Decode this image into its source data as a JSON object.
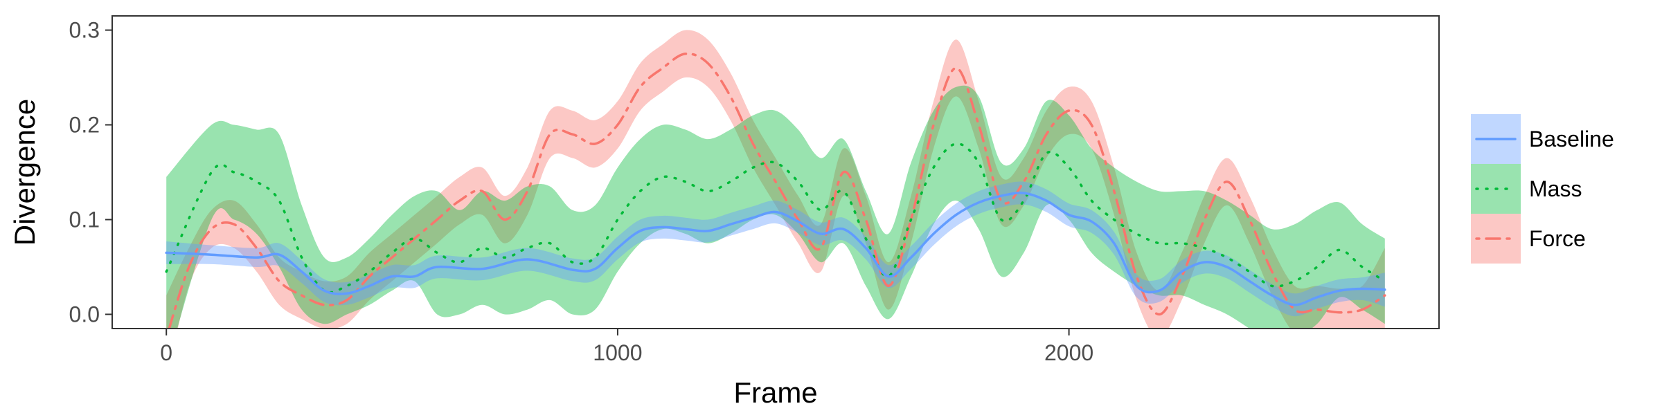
{
  "chart_data": {
    "type": "line",
    "title": "",
    "xlabel": "Frame",
    "ylabel": "Divergence",
    "xlim": [
      -120,
      2820
    ],
    "ylim": [
      -0.015,
      0.315
    ],
    "xticks": [
      0,
      1000,
      2000
    ],
    "xtick_labels": [
      "0",
      "1000",
      "2000"
    ],
    "yticks": [
      0.0,
      0.1,
      0.2,
      0.3
    ],
    "ytick_labels": [
      "0.0",
      "0.1",
      "0.2",
      "0.3"
    ],
    "grid": false,
    "legend_position": "right",
    "series": [
      {
        "name": "Baseline",
        "color": "#619CFF",
        "line_style": "solid",
        "x": [
          0,
          100,
          200,
          250,
          300,
          350,
          400,
          450,
          500,
          550,
          600,
          700,
          800,
          900,
          950,
          1000,
          1050,
          1100,
          1150,
          1200,
          1250,
          1300,
          1350,
          1400,
          1450,
          1500,
          1550,
          1600,
          1650,
          1700,
          1750,
          1800,
          1850,
          1900,
          1950,
          2000,
          2050,
          2100,
          2150,
          2200,
          2250,
          2300,
          2350,
          2400,
          2450,
          2500,
          2550,
          2600,
          2650,
          2700
        ],
        "y": [
          0.065,
          0.063,
          0.06,
          0.063,
          0.045,
          0.025,
          0.022,
          0.03,
          0.04,
          0.04,
          0.05,
          0.048,
          0.058,
          0.047,
          0.048,
          0.07,
          0.088,
          0.092,
          0.09,
          0.088,
          0.095,
          0.102,
          0.108,
          0.098,
          0.085,
          0.09,
          0.07,
          0.04,
          0.06,
          0.085,
          0.105,
          0.118,
          0.125,
          0.128,
          0.12,
          0.105,
          0.098,
          0.075,
          0.03,
          0.025,
          0.045,
          0.055,
          0.05,
          0.035,
          0.02,
          0.01,
          0.018,
          0.025,
          0.027,
          0.026
        ],
        "band": [
          0.012,
          0.01,
          0.01,
          0.012,
          0.012,
          0.012,
          0.012,
          0.012,
          0.012,
          0.012,
          0.012,
          0.012,
          0.012,
          0.012,
          0.012,
          0.012,
          0.012,
          0.012,
          0.012,
          0.012,
          0.012,
          0.012,
          0.012,
          0.012,
          0.012,
          0.012,
          0.012,
          0.012,
          0.012,
          0.012,
          0.012,
          0.012,
          0.012,
          0.012,
          0.012,
          0.012,
          0.012,
          0.012,
          0.012,
          0.012,
          0.012,
          0.012,
          0.012,
          0.012,
          0.012,
          0.012,
          0.012,
          0.012,
          0.012,
          0.018
        ]
      },
      {
        "name": "Mass",
        "color": "#00BA38",
        "line_style": "dotted",
        "x": [
          0,
          100,
          150,
          200,
          250,
          300,
          350,
          400,
          450,
          500,
          550,
          600,
          650,
          700,
          750,
          800,
          850,
          900,
          950,
          1000,
          1050,
          1100,
          1150,
          1200,
          1250,
          1300,
          1350,
          1400,
          1450,
          1500,
          1550,
          1600,
          1650,
          1700,
          1750,
          1800,
          1850,
          1900,
          1950,
          2000,
          2050,
          2100,
          2150,
          2200,
          2250,
          2300,
          2350,
          2400,
          2450,
          2500,
          2550,
          2600,
          2650,
          2700
        ],
        "y": [
          0.045,
          0.15,
          0.15,
          0.14,
          0.12,
          0.06,
          0.025,
          0.03,
          0.045,
          0.065,
          0.08,
          0.065,
          0.055,
          0.07,
          0.06,
          0.07,
          0.075,
          0.055,
          0.06,
          0.1,
          0.13,
          0.145,
          0.14,
          0.13,
          0.14,
          0.155,
          0.16,
          0.14,
          0.11,
          0.13,
          0.08,
          0.04,
          0.1,
          0.155,
          0.18,
          0.16,
          0.1,
          0.12,
          0.17,
          0.155,
          0.12,
          0.1,
          0.085,
          0.075,
          0.075,
          0.07,
          0.06,
          0.045,
          0.03,
          0.035,
          0.05,
          0.068,
          0.05,
          0.035
        ],
        "band": [
          0.1,
          0.05,
          0.05,
          0.055,
          0.07,
          0.055,
          0.035,
          0.03,
          0.035,
          0.04,
          0.045,
          0.065,
          0.055,
          0.06,
          0.06,
          0.065,
          0.06,
          0.055,
          0.055,
          0.055,
          0.055,
          0.055,
          0.055,
          0.055,
          0.055,
          0.055,
          0.055,
          0.055,
          0.055,
          0.055,
          0.05,
          0.045,
          0.06,
          0.06,
          0.06,
          0.07,
          0.06,
          0.055,
          0.055,
          0.055,
          0.055,
          0.055,
          0.055,
          0.055,
          0.055,
          0.06,
          0.06,
          0.06,
          0.06,
          0.06,
          0.06,
          0.05,
          0.045,
          0.045
        ]
      },
      {
        "name": "Force",
        "color": "#F8766D",
        "line_style": "dotdash",
        "x": [
          0,
          50,
          100,
          150,
          200,
          250,
          300,
          350,
          400,
          450,
          500,
          550,
          600,
          650,
          700,
          750,
          800,
          850,
          900,
          950,
          1000,
          1050,
          1100,
          1150,
          1200,
          1250,
          1300,
          1350,
          1400,
          1450,
          1500,
          1550,
          1600,
          1650,
          1700,
          1750,
          1800,
          1850,
          1900,
          1950,
          2000,
          2050,
          2100,
          2150,
          2200,
          2250,
          2300,
          2350,
          2400,
          2450,
          2500,
          2550,
          2600,
          2650,
          2700
        ],
        "y": [
          -0.025,
          0.05,
          0.09,
          0.095,
          0.07,
          0.035,
          0.02,
          0.01,
          0.015,
          0.04,
          0.06,
          0.08,
          0.1,
          0.12,
          0.13,
          0.1,
          0.13,
          0.19,
          0.19,
          0.18,
          0.2,
          0.24,
          0.26,
          0.275,
          0.265,
          0.23,
          0.18,
          0.14,
          0.1,
          0.07,
          0.15,
          0.1,
          0.03,
          0.1,
          0.2,
          0.26,
          0.2,
          0.12,
          0.14,
          0.19,
          0.215,
          0.2,
          0.13,
          0.04,
          0.0,
          0.04,
          0.1,
          0.14,
          0.1,
          0.045,
          0.005,
          0.005,
          0.002,
          0.005,
          0.02
        ],
        "band": [
          0.045,
          0.02,
          0.02,
          0.025,
          0.025,
          0.025,
          0.025,
          0.025,
          0.025,
          0.025,
          0.025,
          0.025,
          0.025,
          0.025,
          0.025,
          0.025,
          0.025,
          0.025,
          0.025,
          0.025,
          0.025,
          0.025,
          0.025,
          0.025,
          0.025,
          0.025,
          0.025,
          0.025,
          0.025,
          0.025,
          0.025,
          0.025,
          0.025,
          0.025,
          0.025,
          0.03,
          0.025,
          0.025,
          0.025,
          0.025,
          0.025,
          0.025,
          0.025,
          0.025,
          0.025,
          0.025,
          0.025,
          0.025,
          0.025,
          0.025,
          0.025,
          0.025,
          0.025,
          0.025,
          0.05
        ]
      }
    ]
  }
}
